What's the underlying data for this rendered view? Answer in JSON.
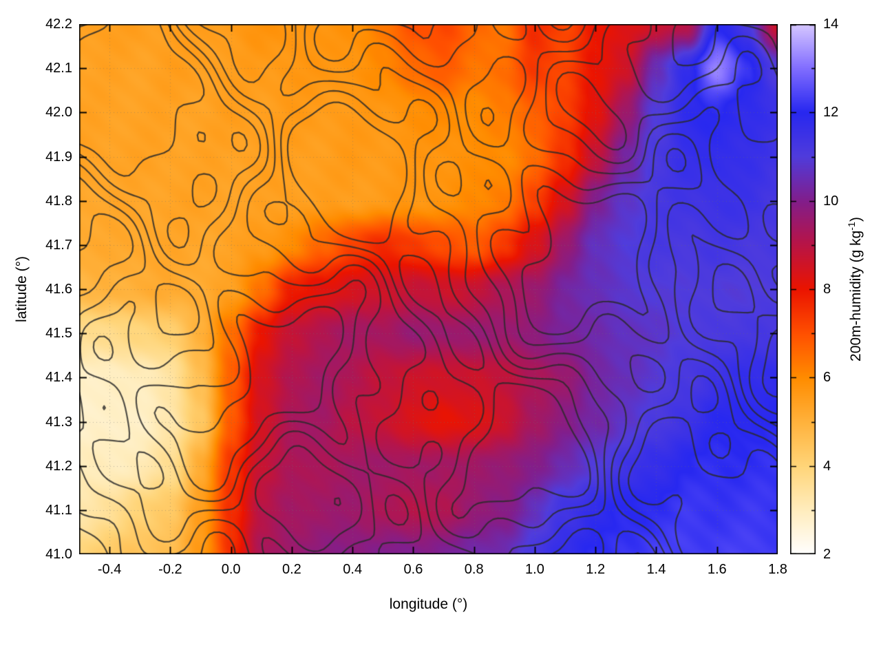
{
  "figure": {
    "background": "#ffffff",
    "plot": {
      "x_axis": {
        "label": "longitude (°)",
        "min": -0.5,
        "max": 1.8,
        "tick_values": [
          -0.4,
          -0.2,
          0.0,
          0.2,
          0.4,
          0.6,
          0.8,
          1.0,
          1.2,
          1.4,
          1.6,
          1.8
        ],
        "tick_labels": [
          "-0.4",
          "-0.2",
          "0.0",
          "0.2",
          "0.4",
          "0.6",
          "0.8",
          "1.0",
          "1.2",
          "1.4",
          "1.6",
          "1.8"
        ]
      },
      "y_axis": {
        "label": "latitude (°)",
        "min": 41.0,
        "max": 42.2,
        "tick_values": [
          41.0,
          41.1,
          41.2,
          41.3,
          41.4,
          41.5,
          41.6,
          41.7,
          41.8,
          41.9,
          42.0,
          42.1,
          42.2
        ],
        "tick_labels": [
          "41.0",
          "41.1",
          "41.2",
          "41.3",
          "41.4",
          "41.5",
          "41.6",
          "41.7",
          "41.8",
          "41.9",
          "42.0",
          "42.1",
          "42.2"
        ]
      }
    },
    "colorbar": {
      "label_parts": {
        "main": "200m-humidity (g kg",
        "sup": "-1",
        "end": ")"
      },
      "min": 2,
      "max": 14,
      "tick_values": [
        2,
        4,
        6,
        8,
        10,
        12,
        14
      ],
      "tick_labels": [
        "2",
        "4",
        "6",
        "8",
        "10",
        "12",
        "14"
      ],
      "minor_tick_values": [
        3,
        5,
        7,
        9,
        11,
        13
      ]
    }
  },
  "chart_data": {
    "type": "heatmap",
    "title": "",
    "xlabel": "longitude (°)",
    "ylabel": "latitude (°)",
    "value_label": "200m-humidity (g kg-1)",
    "value_units": "g kg-1",
    "xlim": [
      -0.5,
      1.8
    ],
    "ylim": [
      41.0,
      42.2
    ],
    "clim": [
      2,
      14
    ],
    "grid": true,
    "x": [
      -0.5,
      -0.4,
      -0.3,
      -0.2,
      -0.1,
      0.0,
      0.1,
      0.2,
      0.3,
      0.4,
      0.5,
      0.6,
      0.7,
      0.8,
      0.9,
      1.0,
      1.1,
      1.2,
      1.3,
      1.4,
      1.5,
      1.6,
      1.7,
      1.8
    ],
    "y": [
      42.2,
      42.1,
      42.0,
      41.9,
      41.8,
      41.7,
      41.6,
      41.5,
      41.4,
      41.3,
      41.2,
      41.1,
      41.0
    ],
    "values": [
      [
        5.5,
        5.5,
        5.5,
        5.5,
        5.5,
        5.6,
        5.8,
        5.8,
        5.7,
        5.9,
        6.3,
        7.0,
        7.2,
        6.6,
        6.4,
        7.6,
        7.2,
        7.9,
        8.3,
        8.6,
        9.0,
        12.0,
        11.2,
        8.6
      ],
      [
        5.4,
        5.4,
        5.4,
        5.5,
        5.5,
        5.5,
        5.6,
        5.7,
        5.7,
        5.8,
        6.0,
        6.6,
        6.8,
        6.4,
        6.5,
        7.4,
        7.2,
        8.0,
        8.6,
        10.5,
        11.8,
        13.2,
        12.2,
        11.0
      ],
      [
        5.4,
        5.4,
        5.4,
        5.4,
        5.4,
        5.5,
        5.5,
        5.6,
        5.6,
        5.6,
        5.7,
        5.9,
        6.0,
        6.0,
        6.2,
        6.8,
        7.2,
        8.2,
        9.5,
        11.0,
        11.8,
        12.0,
        11.8,
        11.5
      ],
      [
        5.4,
        5.4,
        5.4,
        5.4,
        5.4,
        5.4,
        5.5,
        5.5,
        5.5,
        5.6,
        5.6,
        5.7,
        5.8,
        5.9,
        6.0,
        6.5,
        7.5,
        8.8,
        10.2,
        11.2,
        11.6,
        11.8,
        11.6,
        11.4
      ],
      [
        5.3,
        5.3,
        5.3,
        5.4,
        5.4,
        5.4,
        5.4,
        5.5,
        5.5,
        5.5,
        5.6,
        5.7,
        5.8,
        6.0,
        6.3,
        7.2,
        8.5,
        10.0,
        10.8,
        11.2,
        11.4,
        11.5,
        11.5,
        11.3
      ],
      [
        5.2,
        5.2,
        5.3,
        5.3,
        5.3,
        5.4,
        5.6,
        6.0,
        6.6,
        7.3,
        7.6,
        7.4,
        7.0,
        6.8,
        7.4,
        8.4,
        9.6,
        10.6,
        11.0,
        11.2,
        11.2,
        11.3,
        11.2,
        11.2
      ],
      [
        4.8,
        5.0,
        5.1,
        5.2,
        5.2,
        5.4,
        6.5,
        7.8,
        8.2,
        8.4,
        8.6,
        8.8,
        8.6,
        8.8,
        9.2,
        9.6,
        10.2,
        10.6,
        10.8,
        11.0,
        11.0,
        11.0,
        11.0,
        11.0
      ],
      [
        3.6,
        3.8,
        3.9,
        4.2,
        5.0,
        6.5,
        8.0,
        8.8,
        9.2,
        9.4,
        9.4,
        9.6,
        9.6,
        9.6,
        9.6,
        9.8,
        10.2,
        10.4,
        10.6,
        10.8,
        11.0,
        11.2,
        11.2,
        11.2
      ],
      [
        2.9,
        2.9,
        3.0,
        3.4,
        4.6,
        6.8,
        8.4,
        9.2,
        9.4,
        9.2,
        8.8,
        8.6,
        8.6,
        8.6,
        8.9,
        9.2,
        9.6,
        10.2,
        10.6,
        10.9,
        11.2,
        11.5,
        11.7,
        11.8
      ],
      [
        2.8,
        2.8,
        2.9,
        3.2,
        4.4,
        6.8,
        8.5,
        9.3,
        9.4,
        9.0,
        8.7,
        8.4,
        8.0,
        8.3,
        8.6,
        9.4,
        9.9,
        10.3,
        10.8,
        11.1,
        11.5,
        11.9,
        12.0,
        12.0
      ],
      [
        3.0,
        3.0,
        3.1,
        3.6,
        5.2,
        7.4,
        8.8,
        9.2,
        9.3,
        9.4,
        9.5,
        9.4,
        9.4,
        9.5,
        9.6,
        10.0,
        10.4,
        11.0,
        11.4,
        11.7,
        12.0,
        12.1,
        12.1,
        12.1
      ],
      [
        3.2,
        3.6,
        4.0,
        4.4,
        5.5,
        7.6,
        9.0,
        9.4,
        9.5,
        9.5,
        9.3,
        9.0,
        9.2,
        9.6,
        9.9,
        10.6,
        11.4,
        11.8,
        12.0,
        12.1,
        12.2,
        12.2,
        12.2,
        12.2
      ],
      [
        4.0,
        4.3,
        4.5,
        4.7,
        5.6,
        7.6,
        9.2,
        9.6,
        9.8,
        9.9,
        10.0,
        10.0,
        10.1,
        10.3,
        10.5,
        11.2,
        11.8,
        12.0,
        12.2,
        12.3,
        12.3,
        12.3,
        12.3,
        12.3
      ]
    ],
    "colormap_stops": [
      [
        2,
        "#ffffff"
      ],
      [
        3,
        "#ffedbe"
      ],
      [
        4,
        "#ffd579"
      ],
      [
        5,
        "#ffb23c"
      ],
      [
        6,
        "#ff8c00"
      ],
      [
        7,
        "#ff5000"
      ],
      [
        8,
        "#eb1400"
      ],
      [
        9,
        "#b91446"
      ],
      [
        10,
        "#821e8c"
      ],
      [
        11,
        "#503cdc"
      ],
      [
        12,
        "#2828f0"
      ],
      [
        13,
        "#826eff"
      ],
      [
        14,
        "#d7c8ff"
      ]
    ],
    "contours": {
      "description": "terrain outline decoration overlaid on humidity field",
      "color": "#2a2a2a"
    }
  }
}
